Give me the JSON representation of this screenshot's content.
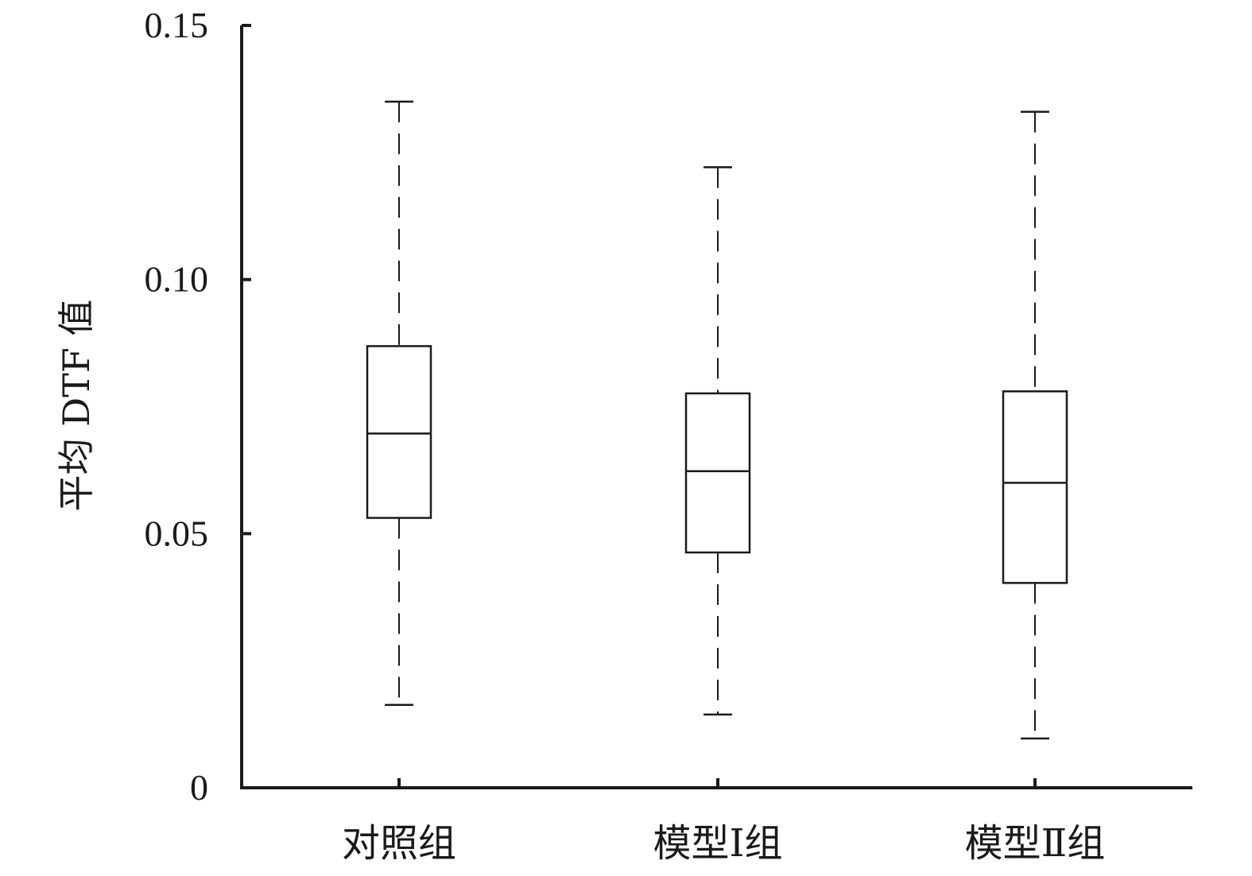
{
  "chart_data": {
    "type": "box",
    "title": "",
    "xlabel": "",
    "ylabel": "平均 DTF 值",
    "ylim": [
      0,
      0.15
    ],
    "yticks": [
      {
        "value": 0,
        "label": "0"
      },
      {
        "value": 0.05,
        "label": "0.05"
      },
      {
        "value": 0.1,
        "label": "0.10"
      },
      {
        "value": 0.15,
        "label": "0.15"
      }
    ],
    "categories": [
      "对照组",
      "模型Ⅰ组",
      "模型Ⅱ组"
    ],
    "series": [
      {
        "category": "对照组",
        "min": 0.0163,
        "q1": 0.0531,
        "median": 0.0697,
        "q3": 0.0869,
        "max": 0.135
      },
      {
        "category": "模型Ⅰ组",
        "min": 0.0144,
        "q1": 0.0463,
        "median": 0.0623,
        "q3": 0.0776,
        "max": 0.1221
      },
      {
        "category": "模型Ⅱ组",
        "min": 0.0097,
        "q1": 0.0403,
        "median": 0.06,
        "q3": 0.078,
        "max": 0.133
      }
    ],
    "grid": false,
    "legend": "none",
    "colors": {
      "line": "#1a1a1a",
      "box_fill": "#ffffff"
    }
  }
}
